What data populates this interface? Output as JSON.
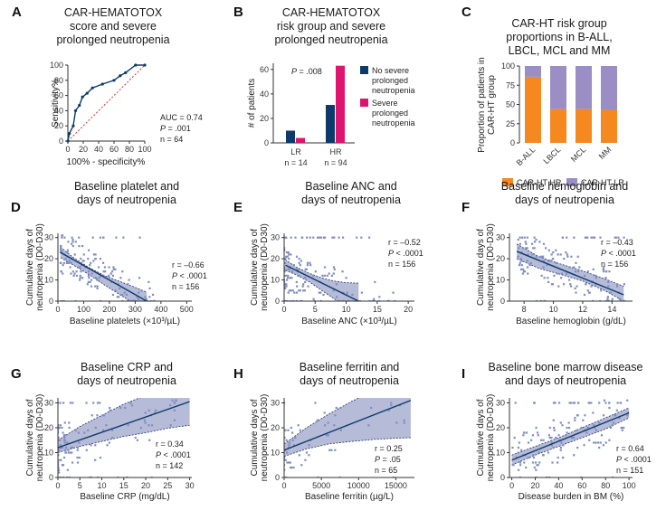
{
  "colors": {
    "navy": "#0c3a6b",
    "magenta": "#e0146e",
    "orange": "#f5881f",
    "lavender": "#9b8ec4",
    "band": "#8f96c2",
    "dots": "#7f8fbf",
    "refline": "#d63030"
  },
  "chart_data": [
    {
      "panel": "A",
      "type": "line",
      "title": "CAR-HEMATOTOX score and severe prolonged neutropenia",
      "title_lines": [
        "CAR-HEMATOTOX",
        "score and severe",
        "prolonged neutropenia"
      ],
      "xlabel": "100% - specificity%",
      "ylabel": "Sensitivity%",
      "xlim": [
        0,
        100
      ],
      "ylim": [
        0,
        100
      ],
      "xticks": [
        "0",
        "20",
        "40",
        "60",
        "80",
        "100"
      ],
      "yticks": [
        "0",
        "20",
        "40",
        "60",
        "80",
        "100"
      ],
      "roc": {
        "x": [
          0,
          2,
          7,
          10,
          15,
          19,
          25,
          32,
          45,
          60,
          68,
          75,
          88,
          100
        ],
        "y": [
          0,
          10,
          20,
          40,
          47,
          58,
          63,
          70,
          75,
          80,
          86,
          90,
          100,
          100
        ]
      },
      "reference_line": true,
      "stats": {
        "auc": "AUC = 0.74",
        "p_label": "P",
        "p_value": " = .001",
        "n": "n = 64"
      }
    },
    {
      "panel": "B",
      "type": "bar",
      "title": "CAR-HEMATOTOX risk group and severe prolonged neutropenia",
      "title_lines": [
        "CAR-HEMATOTOX",
        "risk group and severe",
        "prolonged neutropenia"
      ],
      "ylabel": "# of patients",
      "ylim": [
        0,
        65
      ],
      "yticks": [
        "0",
        "20",
        "40",
        "60"
      ],
      "categories": [
        "LR",
        "HR"
      ],
      "category_n": [
        "n = 14",
        "n = 94"
      ],
      "series": [
        {
          "name": "No severe prolonged neutropenia",
          "name_lines": [
            "No severe",
            "prolonged",
            "neutropenia"
          ],
          "values": [
            10,
            31
          ]
        },
        {
          "name": "Severe prolonged neutropenia",
          "name_lines": [
            "Severe",
            "prolonged",
            "neutropenia"
          ],
          "values": [
            4,
            63
          ]
        }
      ],
      "stats": {
        "p_label": "P",
        "p_value": " = .008"
      }
    },
    {
      "panel": "C",
      "type": "bar",
      "stacked": true,
      "title": "CAR-HT risk group proportions in B-ALL, LBCL, MCL and MM",
      "title_lines": [
        "CAR-HT risk group",
        "proportions in B-ALL,",
        "LBCL, MCL and MM"
      ],
      "ylabel": "Proportion of patients in CAR-HT group",
      "ylabel_lines": [
        "Proportion of patients in",
        "CAR-HT group"
      ],
      "ylim": [
        0,
        100
      ],
      "yticks": [
        "0",
        "25",
        "50",
        "75",
        "100"
      ],
      "categories": [
        "B-ALL",
        "LBCL",
        "MCL",
        "MM"
      ],
      "series": [
        {
          "name": "CAR-HT HR",
          "values": [
            86,
            44,
            44,
            43
          ]
        },
        {
          "name": "CAR-HT LR",
          "values": [
            14,
            56,
            56,
            57
          ]
        }
      ],
      "legend": "bottom"
    },
    {
      "panel": "D",
      "type": "scatter",
      "title_lines": [
        "Baseline platelet and",
        "days of neutropenia"
      ],
      "xlabel": "Baseline platelets (×10³/µL)",
      "ylabel_lines": [
        "Cumulative days of",
        "neutropenia (D0-D30)"
      ],
      "xlim": [
        0,
        520
      ],
      "ylim": [
        0,
        32
      ],
      "xticks": [
        0,
        100,
        200,
        300,
        400,
        500
      ],
      "yticks": [
        0,
        10,
        20,
        30
      ],
      "fit": {
        "x": [
          10,
          345
        ],
        "y": [
          23,
          0
        ]
      },
      "band": {
        "x": [
          10,
          60,
          120,
          180,
          240,
          300,
          345
        ],
        "upper": [
          25.5,
          20.6,
          15.9,
          12.1,
          9.3,
          6.5,
          4.2
        ],
        "lower": [
          20.5,
          17,
          12.6,
          7.7,
          3.1,
          -1.5,
          -4
        ]
      },
      "points": {
        "n": 156,
        "seed": 11,
        "model": {
          "x0": 10,
          "x1": 380,
          "skew": 1.6,
          "intercept": 23.7,
          "slope": -0.068,
          "noise": 9
        }
      },
      "stats": {
        "r": "r = –0.66",
        "p_label": "P",
        "p_value": " < .0001",
        "n": "n = 156"
      }
    },
    {
      "panel": "E",
      "type": "scatter",
      "title_lines": [
        "Baseline ANC and",
        "days of neutropenia"
      ],
      "xlabel": "Baseline ANC (×10³/µL)",
      "ylabel_lines": [
        "Cumulative days of",
        "neutropenia (D0-D30)"
      ],
      "xlim": [
        0,
        21
      ],
      "ylim": [
        0,
        32
      ],
      "xticks": [
        0,
        5,
        10,
        15,
        20
      ],
      "yticks": [
        0,
        10,
        20,
        30
      ],
      "fit": {
        "x": [
          0.2,
          12
        ],
        "y": [
          17,
          0
        ]
      },
      "band": {
        "x": [
          0.2,
          2,
          4,
          6,
          8,
          10,
          12
        ],
        "upper": [
          19.5,
          16,
          13.2,
          11,
          9.5,
          8.7,
          8.5
        ],
        "lower": [
          14.5,
          12.4,
          9.2,
          5.2,
          1.2,
          -3,
          -7.5
        ]
      },
      "points": {
        "n": 156,
        "seed": 23,
        "model": {
          "x0": 0,
          "x1": 18,
          "skew": 2.4,
          "intercept": 15,
          "slope": -1.1,
          "noise": 10
        }
      },
      "stats": {
        "r": "r = –0.52",
        "p_label": "P",
        "p_value": " < .0001",
        "n": "n = 156"
      }
    },
    {
      "panel": "F",
      "type": "scatter",
      "title_lines": [
        "Baseline hemoglobin and",
        "days of neutropenia"
      ],
      "xlabel": "Baseline hemoglobin (g/dL)",
      "ylabel_lines": [
        "Cumulative days of",
        "neutropenia (D0-D30)"
      ],
      "xlim": [
        7,
        15.4
      ],
      "ylim": [
        0,
        32
      ],
      "xticks": [
        8,
        10,
        12,
        14
      ],
      "yticks": [
        0,
        10,
        20,
        30
      ],
      "fit": {
        "x": [
          7.5,
          14.8
        ],
        "y": [
          23.5,
          3
        ]
      },
      "band": {
        "x": [
          7.5,
          9,
          10.5,
          12,
          13.5,
          14.8
        ],
        "upper": [
          27,
          21,
          17.5,
          14.3,
          10.5,
          7
        ],
        "lower": [
          20,
          15.5,
          12.6,
          9.5,
          5,
          0
        ]
      },
      "points": {
        "n": 156,
        "seed": 37,
        "model": {
          "x0": 7.5,
          "x1": 15,
          "skew": 1.0,
          "intercept": 44.5,
          "slope": -2.8,
          "noise": 9
        }
      },
      "stats": {
        "r": "r = –0.43",
        "p_label": "P",
        "p_value": " < .0001",
        "n": "n = 156"
      }
    },
    {
      "panel": "G",
      "type": "scatter",
      "title_lines": [
        "Baseline CRP and",
        "days of neutropenia"
      ],
      "xlabel": "Baseline CRP (mg/dL)",
      "ylabel_lines": [
        "Cumulative days of",
        "neutropenia (D0-D30)"
      ],
      "xlim": [
        0,
        30.5
      ],
      "ylim": [
        0,
        32
      ],
      "xticks": [
        0,
        5,
        10,
        15,
        20,
        25,
        30
      ],
      "yticks": [
        0,
        10,
        20,
        30
      ],
      "fit": {
        "x": [
          0,
          30
        ],
        "y": [
          12,
          30.5
        ]
      },
      "band": {
        "x": [
          0,
          5,
          10,
          15,
          20,
          25,
          30
        ],
        "upper": [
          15,
          20.5,
          25,
          29.5,
          33,
          37,
          41
        ],
        "lower": [
          10,
          12.5,
          14.5,
          16.5,
          18,
          19.8,
          21
        ]
      },
      "points": {
        "n": 142,
        "seed": 51,
        "model": {
          "x0": 0,
          "x1": 27,
          "skew": 3.2,
          "intercept": 12,
          "slope": 0.6,
          "noise": 10
        }
      },
      "stats": {
        "r": "r = 0.34",
        "p_label": "P",
        "p_value": " < .0001",
        "n": "n = 142"
      }
    },
    {
      "panel": "H",
      "type": "scatter",
      "title_lines": [
        "Baseline ferritin and",
        "days of neutropenia"
      ],
      "xlabel": "Baseline ferritin (µg/L)",
      "ylabel_lines": [
        "Cumulative days of",
        "neutropenia (D0-D30)"
      ],
      "xlim": [
        0,
        17500
      ],
      "ylim": [
        0,
        32
      ],
      "xticks": [
        0,
        5000,
        10000,
        15000
      ],
      "yticks": [
        0,
        10,
        20,
        30
      ],
      "fit": {
        "x": [
          0,
          17000
        ],
        "y": [
          11,
          31
        ]
      },
      "band": {
        "x": [
          0,
          3000,
          6000,
          9000,
          12000,
          15000,
          17000
        ],
        "upper": [
          13.5,
          20,
          25.5,
          30.5,
          35,
          40,
          43
        ],
        "lower": [
          8.5,
          11.5,
          13.5,
          14.5,
          15.3,
          15.8,
          16
        ]
      },
      "points": {
        "n": 65,
        "seed": 71,
        "model": {
          "x0": 0,
          "x1": 17000,
          "skew": 3.0,
          "intercept": 11,
          "slope": 0.0012,
          "noise": 9
        }
      },
      "stats": {
        "r": "r = 0.25",
        "p_label": "P",
        "p_value": " = .05",
        "n": "n = 65"
      }
    },
    {
      "panel": "I",
      "type": "scatter",
      "title_lines": [
        "Baseline bone marrow disease",
        "and days of neutropenia"
      ],
      "xlabel": "Disease burden in BM (%)",
      "ylabel_lines": [
        "Cumulative days of",
        "neutropenia (D0-D30)"
      ],
      "xlim": [
        -2,
        103
      ],
      "ylim": [
        0,
        32
      ],
      "xticks": [
        0,
        20,
        40,
        60,
        80,
        100
      ],
      "yticks": [
        0,
        10,
        20,
        30
      ],
      "fit": {
        "x": [
          0,
          100
        ],
        "y": [
          7,
          26
        ]
      },
      "band": {
        "x": [
          0,
          20,
          40,
          60,
          80,
          100
        ],
        "upper": [
          9,
          12.5,
          16,
          20,
          24,
          28
        ],
        "lower": [
          5,
          9,
          12.5,
          16,
          19.5,
          24
        ]
      },
      "points": {
        "n": 151,
        "seed": 89,
        "model": {
          "x0": 0,
          "x1": 100,
          "skew": 1.0,
          "intercept": 7,
          "slope": 0.19,
          "noise": 9
        }
      },
      "stats": {
        "r": "r = 0.64",
        "p_label": "P",
        "p_value": " < .0001",
        "n": "n = 151"
      }
    }
  ]
}
